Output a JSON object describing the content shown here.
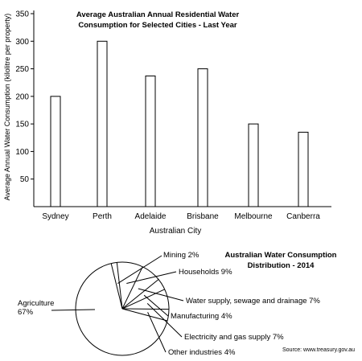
{
  "chart_data": [
    {
      "type": "bar",
      "title_lines": [
        "Average Australian Annual Residential Water",
        "Consumption for Selected Cities - Last Year"
      ],
      "xlabel": "Australian City",
      "ylabel": "Average Annual Water Consumption (kilolitre per property)",
      "ylim": [
        0,
        350
      ],
      "yticks": [
        50,
        100,
        150,
        200,
        250,
        300,
        350
      ],
      "categories": [
        "Sydney",
        "Perth",
        "Adelaide",
        "Brisbane",
        "Melbourne",
        "Canberra"
      ],
      "values": [
        200,
        300,
        237,
        250,
        150,
        135
      ],
      "bar_fill": "#ffffff",
      "bar_stroke": "#000000",
      "grid": false
    },
    {
      "type": "pie",
      "title_lines": [
        "Australian Water Consumption",
        "Distribution - 2014"
      ],
      "slices": [
        {
          "label": "Agriculture",
          "pct_text": "67%",
          "value": 67
        },
        {
          "label": "Mining 2%",
          "value": 2
        },
        {
          "label": "Households 9%",
          "value": 9
        },
        {
          "label": "Water supply, sewage and drainage 7%",
          "value": 7
        },
        {
          "label": "Manufacturing 4%",
          "value": 4
        },
        {
          "label": "Electricity and gas supply 7%",
          "value": 7
        },
        {
          "label": "Other industries 4%",
          "value": 4
        }
      ]
    }
  ],
  "source": "Source: www.treasury.gov.au"
}
